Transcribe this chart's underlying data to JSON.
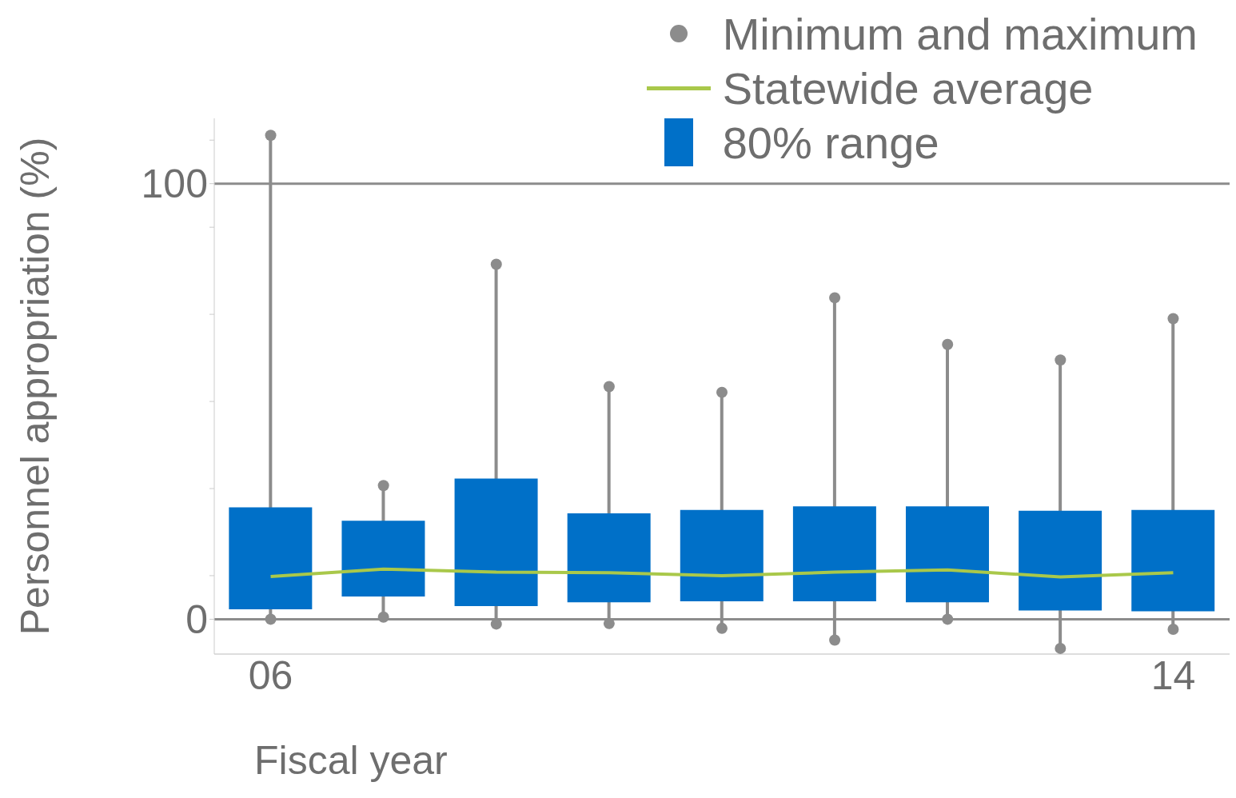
{
  "chart_data": {
    "type": "box",
    "ylabel": "Personnel appropriation (%)",
    "xlabel": "Fiscal year",
    "categories": [
      "06",
      null,
      null,
      null,
      null,
      null,
      null,
      null,
      "14"
    ],
    "ylim": [
      -8,
      115
    ],
    "yticks": [
      0,
      100,
      {
        "value": 10,
        "label": null
      },
      {
        "value": 30,
        "label": null
      },
      {
        "value": 50,
        "label": null
      },
      {
        "value": 70,
        "label": null
      },
      {
        "value": 90,
        "label": null
      },
      {
        "value": 110,
        "label": null
      }
    ],
    "ref_lines": [
      {
        "axis": "y",
        "value": 0,
        "color": "#8c8c8c"
      },
      {
        "axis": "y",
        "value": 100,
        "color": "#8c8c8c"
      }
    ],
    "legend": "top right",
    "series": [
      {
        "type": "box",
        "name": "80% range",
        "color": "#0070c8",
        "boxes": [
          {
            "low": 0,
            "q1": 2.3,
            "q3": 25.7,
            "high": 111.1
          },
          {
            "low": 0.5,
            "q1": 5.2,
            "q3": 22.6,
            "high": 30.7
          },
          {
            "low": -1.1,
            "q1": 3.0,
            "q3": 32.3,
            "high": 81.5
          },
          {
            "low": -1.0,
            "q1": 3.9,
            "q3": 24.3,
            "high": 53.4
          },
          {
            "low": -2.1,
            "q1": 4.1,
            "q3": 25.1,
            "high": 52.1
          },
          {
            "low": -4.8,
            "q1": 4.1,
            "q3": 25.9,
            "high": 73.8
          },
          {
            "low": 0,
            "q1": 3.9,
            "q3": 25.9,
            "high": 63.1
          },
          {
            "low": -6.7,
            "q1": 2.0,
            "q3": 24.9,
            "high": 59.5
          },
          {
            "low": -2.3,
            "q1": 1.8,
            "q3": 25.1,
            "high": 69.0
          }
        ]
      },
      {
        "type": "line",
        "name": "Statewide average",
        "color": "#a9c84a",
        "values": [
          9.8,
          11.5,
          10.8,
          10.7,
          10.0,
          10.8,
          11.3,
          9.7,
          10.7
        ]
      },
      {
        "type": "scatter",
        "name": "Minimum and maximum",
        "color": "#8c8c8c",
        "values": [
          111.1,
          30.7,
          81.5,
          53.4,
          52.1,
          73.8,
          63.1,
          59.5,
          69.0
        ]
      },
      {
        "type": "scatter",
        "color": "#8c8c8c",
        "values": [
          0,
          0.5,
          -1.1,
          -1.0,
          -2.1,
          -4.8,
          0,
          -6.7,
          -2.3
        ]
      }
    ]
  }
}
